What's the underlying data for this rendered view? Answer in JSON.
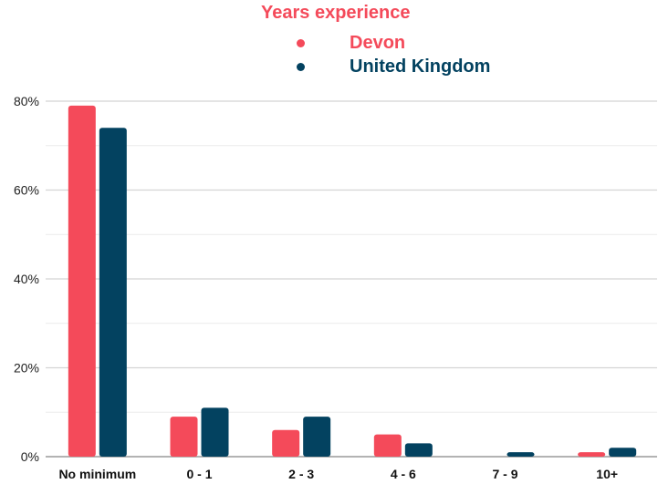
{
  "chart_data": {
    "type": "bar",
    "legend_title": "Years experience",
    "categories": [
      "No minimum",
      "0 - 1",
      "2 - 3",
      "4 - 6",
      "7 - 9",
      "10+"
    ],
    "series": [
      {
        "name": "Devon",
        "color": "#f44a5a",
        "values": [
          79,
          9,
          6,
          5,
          0,
          1
        ]
      },
      {
        "name": "United Kingdom",
        "color": "#034260",
        "values": [
          74,
          11,
          9,
          3,
          1,
          2
        ]
      }
    ],
    "yticks": [
      "0%",
      "20%",
      "40%",
      "60%",
      "80%"
    ],
    "ylim": [
      0,
      80
    ],
    "y_tick_values": [
      0,
      20,
      40,
      60,
      80
    ],
    "grid": true,
    "legend_position": "top-center",
    "xlabel": "",
    "ylabel": ""
  }
}
